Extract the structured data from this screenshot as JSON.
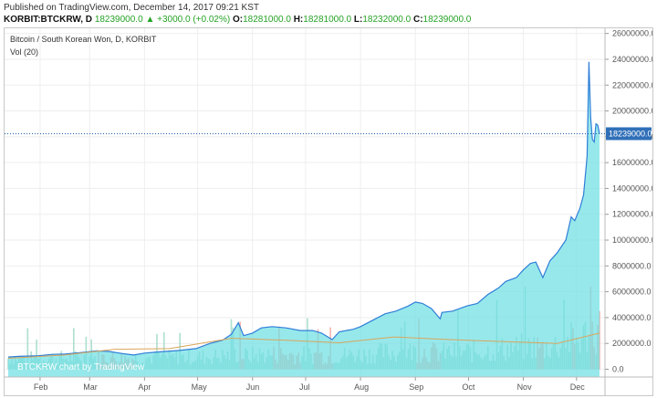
{
  "header": {
    "published": "Published on TradingView.com, December 14, 2017 09:21 KST",
    "symbol": "KORBIT:BTCKRW, D",
    "last": "18239000.0",
    "change": "+3000.0 (+0.02%)",
    "open_label": "O:",
    "open": "18281000.0",
    "high_label": "H:",
    "high": "18281000.0",
    "low_label": "L:",
    "low": "18232000.0",
    "close_label": "C:",
    "close": "18239000.0"
  },
  "chart_data": {
    "type": "area",
    "title": "Bitcoin / South Korean Won, D, KORBIT",
    "volume_label": "Vol (20)",
    "watermark": "BTCKRW chart by TradingView",
    "price_tag": "18239000.0",
    "current_price": 18239000,
    "ylim": [
      -600000,
      26400000
    ],
    "y_ticks": [
      0,
      2000000,
      4000000,
      6000000,
      8000000,
      10000000,
      12000000,
      14000000,
      16000000,
      18000000,
      20000000,
      22000000,
      24000000,
      26000000
    ],
    "y_tick_labels": [
      "0.0",
      "2000000.0",
      "4000000.0",
      "6000000.0",
      "8000000.0",
      "10000000.0",
      "12000000.0",
      "14000000.0",
      "16000000.0",
      "18000000.0",
      "20000000.0",
      "22000000.0",
      "24000000.0",
      "26000000.0"
    ],
    "x_tick_labels": [
      "Feb",
      "Mar",
      "Apr",
      "May",
      "Jun",
      "Jul",
      "Aug",
      "Sep",
      "Oct",
      "Nov",
      "Dec"
    ],
    "x_ticks": [
      "2017-02-01",
      "2017-03-01",
      "2017-04-01",
      "2017-05-01",
      "2017-06-01",
      "2017-07-01",
      "2017-08-01",
      "2017-09-01",
      "2017-10-01",
      "2017-11-01",
      "2017-12-01"
    ],
    "x_range": [
      "2017-01-14",
      "2017-12-14"
    ],
    "grid": true,
    "colors": {
      "line": "#2f7ed8",
      "fill": "#6fdfe3",
      "vol_up": "#9ed9c8",
      "vol_down": "#f2a7a0",
      "vol_ma": "#d9a65b",
      "price_line": "#1f5fa8",
      "tag_bg": "#2f6fb8"
    },
    "series": [
      {
        "name": "BTCKRW",
        "points": [
          [
            "2017-01-14",
            950000
          ],
          [
            "2017-01-20",
            1000000
          ],
          [
            "2017-01-31",
            1050000
          ],
          [
            "2017-02-08",
            1150000
          ],
          [
            "2017-02-15",
            1180000
          ],
          [
            "2017-02-25",
            1300000
          ],
          [
            "2017-03-05",
            1420000
          ],
          [
            "2017-03-12",
            1380000
          ],
          [
            "2017-03-20",
            1200000
          ],
          [
            "2017-03-26",
            1100000
          ],
          [
            "2017-04-01",
            1250000
          ],
          [
            "2017-04-10",
            1350000
          ],
          [
            "2017-04-20",
            1450000
          ],
          [
            "2017-04-30",
            1600000
          ],
          [
            "2017-05-08",
            2000000
          ],
          [
            "2017-05-15",
            2250000
          ],
          [
            "2017-05-20",
            2700000
          ],
          [
            "2017-05-24",
            3600000
          ],
          [
            "2017-05-27",
            2600000
          ],
          [
            "2017-06-01",
            2800000
          ],
          [
            "2017-06-06",
            3200000
          ],
          [
            "2017-06-12",
            3300000
          ],
          [
            "2017-06-20",
            3200000
          ],
          [
            "2017-06-28",
            3000000
          ],
          [
            "2017-07-05",
            3000000
          ],
          [
            "2017-07-10",
            2800000
          ],
          [
            "2017-07-16",
            2300000
          ],
          [
            "2017-07-20",
            2900000
          ],
          [
            "2017-07-28",
            3100000
          ],
          [
            "2017-08-01",
            3300000
          ],
          [
            "2017-08-08",
            3800000
          ],
          [
            "2017-08-15",
            4300000
          ],
          [
            "2017-08-21",
            4500000
          ],
          [
            "2017-08-28",
            4900000
          ],
          [
            "2017-09-01",
            5200000
          ],
          [
            "2017-09-05",
            5100000
          ],
          [
            "2017-09-10",
            4700000
          ],
          [
            "2017-09-15",
            3900000
          ],
          [
            "2017-09-16",
            4400000
          ],
          [
            "2017-09-22",
            4500000
          ],
          [
            "2017-09-30",
            4900000
          ],
          [
            "2017-10-06",
            5100000
          ],
          [
            "2017-10-12",
            5800000
          ],
          [
            "2017-10-18",
            6300000
          ],
          [
            "2017-10-22",
            6800000
          ],
          [
            "2017-10-28",
            7100000
          ],
          [
            "2017-11-01",
            7700000
          ],
          [
            "2017-11-05",
            8200000
          ],
          [
            "2017-11-08",
            8300000
          ],
          [
            "2017-11-12",
            7100000
          ],
          [
            "2017-11-16",
            8400000
          ],
          [
            "2017-11-20",
            9000000
          ],
          [
            "2017-11-25",
            10000000
          ],
          [
            "2017-11-28",
            11800000
          ],
          [
            "2017-11-30",
            11500000
          ],
          [
            "2017-12-03",
            12500000
          ],
          [
            "2017-12-05",
            13500000
          ],
          [
            "2017-12-07",
            16500000
          ],
          [
            "2017-12-08",
            23800000
          ],
          [
            "2017-12-09",
            19500000
          ],
          [
            "2017-12-10",
            17800000
          ],
          [
            "2017-12-11",
            17600000
          ],
          [
            "2017-12-12",
            19000000
          ],
          [
            "2017-12-13",
            18900000
          ],
          [
            "2017-12-14",
            18239000
          ]
        ]
      },
      {
        "name": "Vol (20)",
        "kind": "volume_ma",
        "points": [
          [
            "2017-01-14",
            850000
          ],
          [
            "2017-02-15",
            1100000
          ],
          [
            "2017-03-15",
            1550000
          ],
          [
            "2017-04-15",
            1600000
          ],
          [
            "2017-05-20",
            2400000
          ],
          [
            "2017-06-20",
            2250000
          ],
          [
            "2017-07-20",
            2050000
          ],
          [
            "2017-08-20",
            2500000
          ],
          [
            "2017-09-20",
            2300000
          ],
          [
            "2017-10-20",
            2150000
          ],
          [
            "2017-11-20",
            2000000
          ],
          [
            "2017-12-14",
            2800000
          ]
        ]
      }
    ]
  }
}
